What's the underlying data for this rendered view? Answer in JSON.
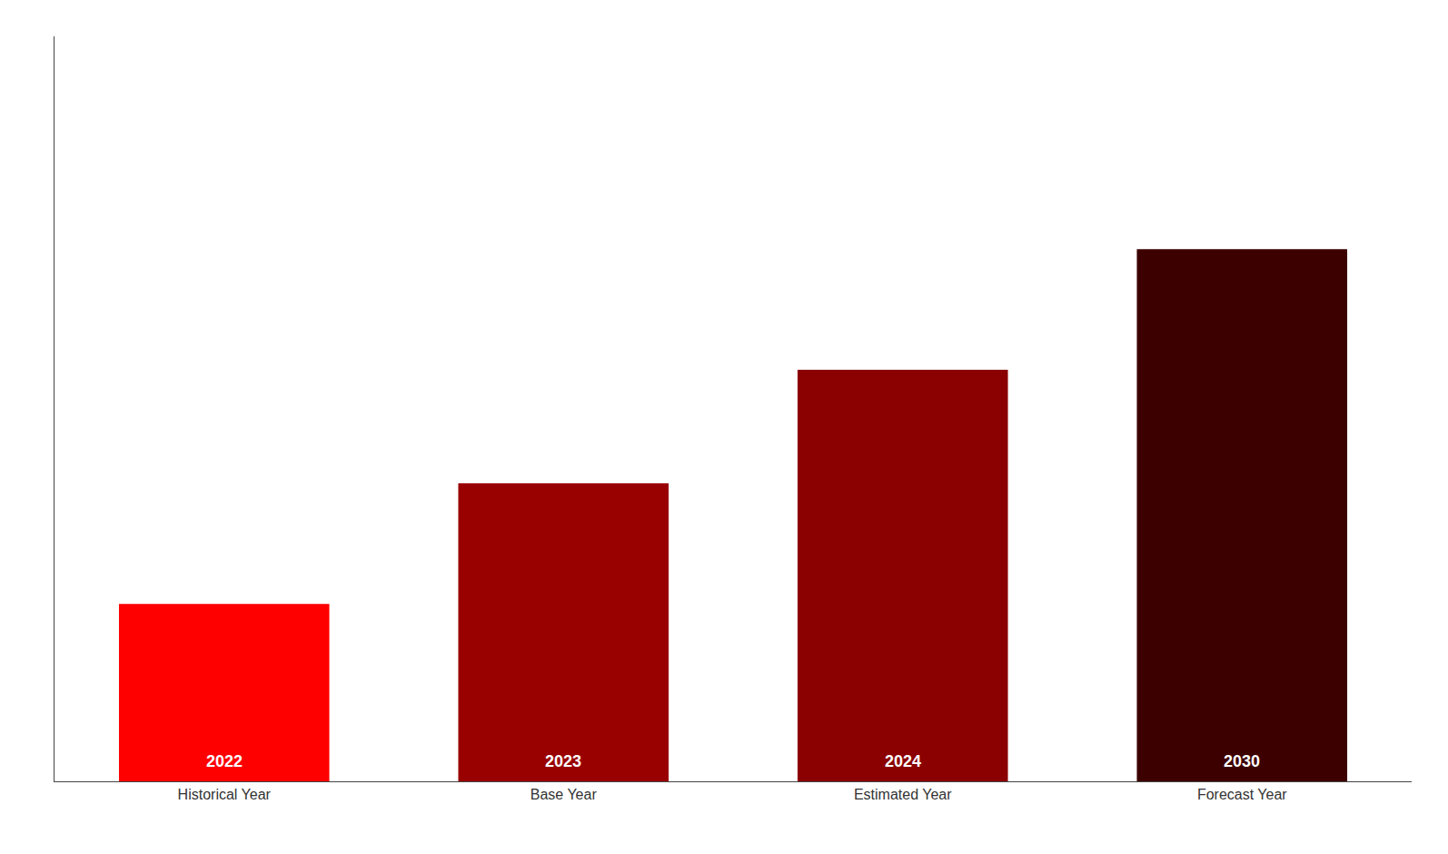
{
  "chart_data": {
    "type": "bar",
    "categories": [
      "Historical Year",
      "Base Year",
      "Estimated Year",
      "Forecast Year"
    ],
    "values": [
      2.5,
      4.2,
      5.8,
      7.5
    ],
    "colors": [
      "#ff0000",
      "#990000",
      "#8b0000",
      "#3d0000"
    ],
    "annotations": [
      "2022",
      "2023",
      "2024",
      "2030"
    ],
    "ylim": [
      0,
      10.5
    ],
    "grid": false,
    "tick_labels": "x"
  }
}
